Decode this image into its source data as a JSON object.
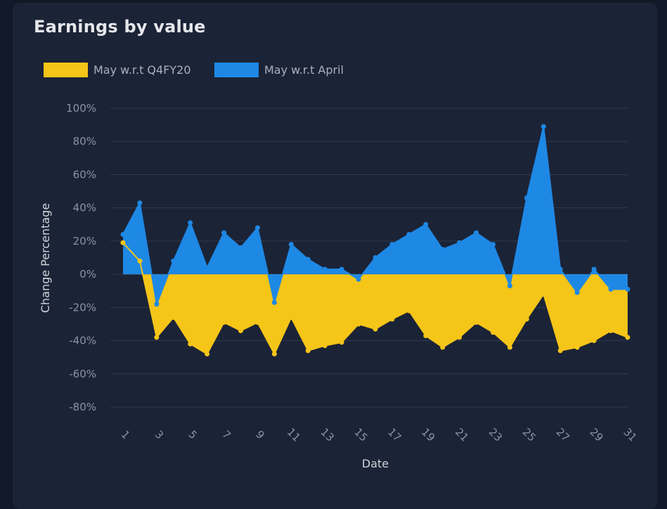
{
  "chart_data": {
    "type": "area",
    "title": "Earnings by value",
    "xlabel": "Date",
    "ylabel": "Change Percentage",
    "ylim": [
      -80,
      100
    ],
    "yticks": [
      100,
      80,
      60,
      40,
      20,
      0,
      -20,
      -40,
      -60,
      -80
    ],
    "ytick_labels": [
      "100%",
      "80%",
      "60%",
      "40%",
      "20%",
      "0%",
      "-20%",
      "-40%",
      "-60%",
      "-80%"
    ],
    "x": [
      1,
      2,
      3,
      4,
      5,
      6,
      7,
      8,
      9,
      10,
      11,
      12,
      13,
      14,
      15,
      16,
      17,
      18,
      19,
      20,
      21,
      22,
      23,
      24,
      25,
      26,
      27,
      28,
      29,
      30,
      31
    ],
    "xtick_labels": [
      "1",
      "3",
      "5",
      "7",
      "9",
      "11",
      "13",
      "15",
      "17",
      "19",
      "21",
      "23",
      "25",
      "27",
      "29",
      "31"
    ],
    "legend_position": "top-left",
    "series": [
      {
        "name": "May w.r.t Q4FY20",
        "color": "#f5c518",
        "values": [
          19,
          8,
          -38,
          -26,
          -42,
          -48,
          -29,
          -34,
          -29,
          -48,
          -26,
          -46,
          -43,
          -41,
          -30,
          -33,
          -27,
          -22,
          -37,
          -44,
          -38,
          -29,
          -35,
          -44,
          -27,
          -12,
          -46,
          -44,
          -40,
          -34,
          -38
        ]
      },
      {
        "name": "May w.r.t April",
        "color": "#1e88e5",
        "values": [
          24,
          43,
          -18,
          8,
          31,
          4,
          25,
          16,
          28,
          -17,
          18,
          9,
          3,
          3,
          -3,
          10,
          18,
          24,
          30,
          15,
          19,
          25,
          18,
          -7,
          46,
          89,
          3,
          -11,
          3,
          -9,
          -9
        ]
      }
    ]
  }
}
